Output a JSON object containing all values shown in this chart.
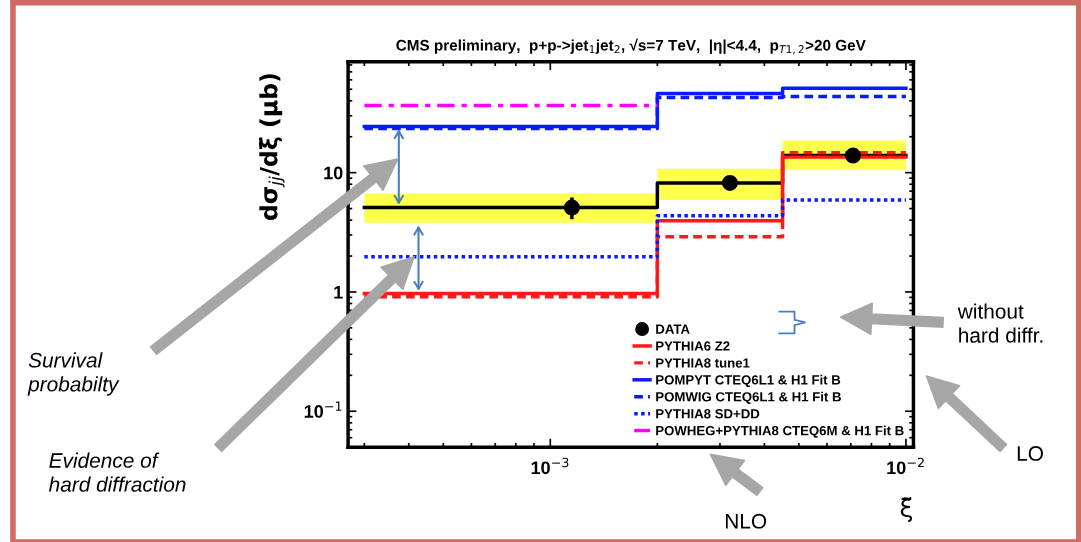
{
  "chart_data": {
    "type": "step",
    "title": "CMS preliminary,  p+p->jet$_{1}$jet$_{2}$, √s=7 TeV,  |η|<4.4,  p$_{T1,2}$>20 GeV",
    "xlabel": "ξ̃",
    "ylabel": "dσ$_{jj}$/dξ̃ (μb)",
    "log": "xy",
    "xlim": [
      0.00027,
      0.0105
    ],
    "ylim": [
      0.05,
      85
    ],
    "xticks": [
      {
        "value": 0.001,
        "label": "10$^{−3}$"
      },
      {
        "value": 0.01,
        "label": "10$^{−2}$"
      }
    ],
    "yticks": [
      {
        "value": 0.1,
        "label": "10$^{−1}$"
      },
      1,
      10
    ],
    "grid": false,
    "legend": "bottom right",
    "series": [
      {
        "type": "step",
        "color": "#000000",
        "line_style": "solid",
        "x": [
          0.0003,
          0.002,
          0.0045,
          0.01
        ],
        "values": [
          5.1,
          8.2,
          13.9,
          13.9
        ],
        "lower": [
          3.8,
          5.9,
          10.6,
          10.6
        ],
        "upper": [
          6.7,
          10.8,
          18.6,
          18.6
        ]
      },
      {
        "type": "scatter",
        "name": "DATA",
        "color": "#000000",
        "marker": "circle",
        "x": [
          0.00115,
          0.0032,
          0.0071
        ],
        "values": [
          5.1,
          8.2,
          13.9
        ],
        "errors": [
          [
            4.2,
            6.0
          ],
          null,
          null
        ]
      },
      {
        "type": "step",
        "name": "PYTHIA6 Z2",
        "color": "#ff1a1a",
        "line_style": "solid",
        "x": [
          0.0003,
          0.002,
          0.0045,
          0.01
        ],
        "values": [
          0.97,
          3.95,
          13.5,
          13.5
        ]
      },
      {
        "type": "step",
        "name": "PYTHIA8 tune1",
        "color": "#ff1a1a",
        "line_style": "dashed",
        "x": [
          0.0003,
          0.002,
          0.0045,
          0.01
        ],
        "values": [
          0.91,
          2.9,
          14.7,
          14.7
        ]
      },
      {
        "type": "step",
        "name": "POMPYT CTEQ6L1 & H1 Fit B",
        "color": "#0a1aff",
        "line_style": "solid",
        "x": [
          0.0003,
          0.002,
          0.0045,
          0.01
        ],
        "values": [
          24.4,
          46,
          51,
          51
        ]
      },
      {
        "type": "step",
        "name": "POMWIG CTEQ6L1 & H1 Fit B",
        "color": "#0a1aff",
        "line_style": "dashed",
        "x": [
          0.0003,
          0.002,
          0.0045,
          0.01
        ],
        "values": [
          23.4,
          42.6,
          43.5,
          43.5
        ]
      },
      {
        "type": "step",
        "name": "PYTHIA8 SD+DD",
        "color": "#0a1aff",
        "line_style": "dotted",
        "x": [
          0.0003,
          0.002,
          0.0045,
          0.01
        ],
        "values": [
          1.97,
          4.35,
          5.9,
          5.9
        ]
      },
      {
        "type": "step",
        "name": "POWHEG+PYTHIA8 CTEQ6M & H1 Fit B",
        "color": "#ff00ff",
        "line_style": "dashdot",
        "x": [
          0.0003,
          0.002
        ],
        "values": [
          36.6,
          36.6
        ]
      }
    ],
    "annotations": [
      "Survival\nprobabilty",
      "Evidence of\nhard diffraction",
      "without\nhard diffr.",
      "LO",
      "NLO"
    ]
  }
}
